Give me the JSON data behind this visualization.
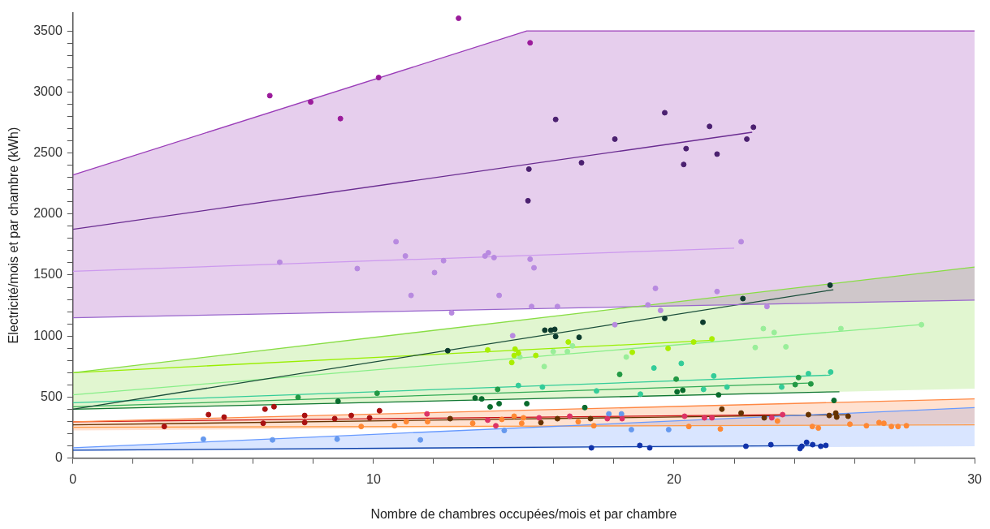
{
  "chart_data": {
    "type": "scatter",
    "xlabel": "Nombre de chambres occupées/mois et par chambre",
    "ylabel": "Electricité/mois et par chambre (kWh)",
    "xlim": [
      0,
      30
    ],
    "xticks": [
      0,
      {
        "value": 2,
        "label": null
      },
      {
        "value": 4,
        "label": null
      },
      {
        "value": 6,
        "label": null
      },
      {
        "value": 8,
        "label": null
      },
      10,
      {
        "value": 12,
        "label": null
      },
      {
        "value": 14,
        "label": null
      },
      {
        "value": 16,
        "label": null
      },
      {
        "value": 18,
        "label": null
      },
      20,
      {
        "value": 22,
        "label": null
      },
      {
        "value": 24,
        "label": null
      },
      {
        "value": 26,
        "label": null
      },
      {
        "value": 28,
        "label": null
      },
      30
    ],
    "ylim": [
      0,
      3650
    ],
    "yticks": [
      0,
      {
        "value": 100,
        "label": null
      },
      {
        "value": 200,
        "label": null
      },
      {
        "value": 300,
        "label": null
      },
      {
        "value": 400,
        "label": null
      },
      500,
      {
        "value": 600,
        "label": null
      },
      {
        "value": 700,
        "label": null
      },
      {
        "value": 800,
        "label": null
      },
      {
        "value": 900,
        "label": null
      },
      1000,
      {
        "value": 1100,
        "label": null
      },
      {
        "value": 1200,
        "label": null
      },
      {
        "value": 1300,
        "label": null
      },
      {
        "value": 1400,
        "label": null
      },
      1500,
      {
        "value": 1600,
        "label": null
      },
      {
        "value": 1700,
        "label": null
      },
      {
        "value": 1800,
        "label": null
      },
      {
        "value": 1900,
        "label": null
      },
      2000,
      {
        "value": 2100,
        "label": null
      },
      {
        "value": 2200,
        "label": null
      },
      {
        "value": 2300,
        "label": null
      },
      {
        "value": 2400,
        "label": null
      },
      2500,
      {
        "value": 2600,
        "label": null
      },
      {
        "value": 2700,
        "label": null
      },
      {
        "value": 2800,
        "label": null
      },
      {
        "value": 2900,
        "label": null
      },
      3000,
      {
        "value": 3100,
        "label": null
      },
      {
        "value": 3200,
        "label": null
      },
      {
        "value": 3300,
        "label": null
      },
      {
        "value": 3400,
        "label": null
      },
      3500
    ],
    "series": [
      {
        "type": "line",
        "color": "#9a3cb8",
        "x": [
          0,
          15.1,
          30
        ],
        "values": [
          2320,
          3500,
          3500
        ],
        "upper": [
          2320,
          3500,
          3500
        ],
        "lower": [
          1150,
          1225,
          1295
        ]
      },
      {
        "type": "line",
        "color": "#88dd44",
        "x": [
          0,
          30
        ],
        "values": [
          700,
          1566
        ],
        "upper": [
          700,
          1566
        ],
        "lower": [
          395,
          569
        ]
      },
      {
        "type": "line",
        "color": "#ff8844",
        "x": [
          0,
          30
        ],
        "values": [
          298,
          485
        ],
        "upper": [
          298,
          485
        ],
        "lower": [
          226,
          280
        ]
      },
      {
        "type": "line",
        "color": "#6699ff",
        "x": [
          0,
          30
        ],
        "values": [
          84,
          414
        ],
        "upper": [
          84,
          414
        ],
        "lower": [
          58,
          97
        ]
      },
      {
        "type": "line",
        "color": "#9966cc",
        "x": [
          0,
          30
        ],
        "values": [
          1150,
          1295
        ]
      },
      {
        "type": "line",
        "color": "#6a2c91",
        "x": [
          0,
          22.6
        ],
        "values": [
          1875,
          2670
        ]
      },
      {
        "type": "line",
        "color": "#cc99ee",
        "x": [
          0,
          22
        ],
        "values": [
          1530,
          1720
        ]
      },
      {
        "type": "line",
        "color": "#1a4d3a",
        "x": [
          0,
          25.3
        ],
        "values": [
          400,
          1380
        ]
      },
      {
        "type": "line",
        "color": "#99ee00",
        "x": [
          0,
          21.3
        ],
        "values": [
          700,
          965
        ]
      },
      {
        "type": "line",
        "color": "#88ee88",
        "x": [
          0,
          28.2
        ],
        "values": [
          518,
          1093
        ]
      },
      {
        "type": "line",
        "color": "#33cc99",
        "x": [
          0,
          25.2
        ],
        "values": [
          453,
          680
        ]
      },
      {
        "type": "line",
        "color": "#33aa55",
        "x": [
          0,
          24.5
        ],
        "values": [
          420,
          615
        ]
      },
      {
        "type": "line",
        "color": "#117733",
        "x": [
          0,
          25.5
        ],
        "values": [
          400,
          544
        ]
      },
      {
        "type": "line",
        "color": "#cc1111",
        "x": [
          0,
          23.6
        ],
        "values": [
          298,
          356
        ]
      },
      {
        "type": "line",
        "color": "#663300",
        "x": [
          0,
          25.8
        ],
        "values": [
          272,
          356
        ]
      },
      {
        "type": "line",
        "color": "#ff9944",
        "x": [
          0,
          30
        ],
        "values": [
          252,
          272
        ]
      },
      {
        "type": "line",
        "color": "#1144aa",
        "x": [
          0,
          25
        ],
        "values": [
          65,
          103
        ]
      },
      {
        "color": "#9b1b9b",
        "x": [
          6.55,
          7.91,
          8.9,
          10.17,
          12.83,
          15.21
        ],
        "values": [
          2970,
          2918,
          2782,
          3118,
          3604,
          3403
        ]
      },
      {
        "color": "#4b2070",
        "x": [
          15.17,
          15.14,
          16.06,
          18.03,
          16.92,
          19.69,
          20.4,
          20.32,
          21.18,
          21.43,
          22.42,
          22.64
        ],
        "values": [
          2368,
          2109,
          2775,
          2614,
          2420,
          2830,
          2536,
          2406,
          2718,
          2491,
          2614,
          2711
        ]
      },
      {
        "color": "#b88ae0",
        "x": [
          6.88,
          9.46,
          10.75,
          11.06,
          11.25,
          12.03,
          12.33,
          12.6,
          13.71,
          13.82,
          14.01,
          14.18,
          14.63,
          15.21,
          15.34,
          15.26,
          16.12,
          18.03,
          19.13,
          19.38,
          19.55,
          21.43,
          22.23,
          23.09
        ],
        "values": [
          1605,
          1553,
          1773,
          1656,
          1333,
          1520,
          1618,
          1190,
          1656,
          1682,
          1643,
          1333,
          1003,
          1630,
          1559,
          1242,
          1242,
          1093,
          1255,
          1391,
          1210,
          1365,
          1773,
          1242
        ]
      },
      {
        "color": "#0d3b2e",
        "x": [
          12.47,
          15.7,
          15.9,
          16.03,
          16.06,
          16.84,
          19.69,
          20.96,
          22.29,
          25.19
        ],
        "values": [
          880,
          1048,
          1048,
          1055,
          996,
          990,
          1145,
          1113,
          1307,
          1417
        ]
      },
      {
        "color": "#aaee00",
        "x": [
          13.8,
          14.71,
          14.68,
          14.82,
          14.6,
          15.4,
          16.48,
          18.61,
          19.8,
          20.65,
          21.26
        ],
        "values": [
          886,
          893,
          841,
          860,
          783,
          841,
          951,
          867,
          899,
          951,
          977
        ]
      },
      {
        "color": "#99ee99",
        "x": [
          14.87,
          15.98,
          15.68,
          16.45,
          16.62,
          18.41,
          22.97,
          23.33,
          22.7,
          23.72,
          25.55,
          28.23
        ],
        "values": [
          828,
          873,
          750,
          873,
          919,
          828,
          1061,
          1029,
          906,
          912,
          1061,
          1093
        ]
      },
      {
        "color": "#33cc99",
        "x": [
          14.82,
          15.62,
          17.42,
          18.88,
          19.33,
          20.24,
          21.32,
          20.98,
          21.76,
          23.58,
          24.47,
          25.21
        ],
        "values": [
          595,
          582,
          550,
          524,
          738,
          776,
          673,
          563,
          582,
          582,
          692,
          705
        ]
      },
      {
        "color": "#229944",
        "x": [
          7.49,
          10.12,
          14.13,
          18.19,
          20.07,
          24.14,
          24.03,
          24.55
        ],
        "values": [
          498,
          531,
          563,
          686,
          647,
          660,
          602,
          608
        ]
      },
      {
        "color": "#0a6b2e",
        "x": [
          8.82,
          13.38,
          13.6,
          13.88,
          14.18,
          15.1,
          17.03,
          20.1,
          20.29,
          21.48,
          25.32
        ],
        "values": [
          466,
          492,
          485,
          420,
          446,
          446,
          414,
          543,
          556,
          518,
          472
        ]
      },
      {
        "color": "#aa1111",
        "x": [
          3.04,
          4.51,
          5.03,
          6.39,
          6.69,
          6.33,
          7.71,
          7.71,
          8.71,
          9.26,
          9.87,
          10.2
        ],
        "values": [
          259,
          356,
          336,
          401,
          421,
          285,
          349,
          291,
          323,
          349,
          330,
          388
        ]
      },
      {
        "color": "#dd3366",
        "x": [
          11.78,
          13.8,
          14.07,
          15.51,
          16.53,
          17.78,
          18.27,
          20.35,
          21.01,
          21.26,
          23.25,
          23.61
        ],
        "values": [
          362,
          311,
          265,
          330,
          343,
          323,
          323,
          343,
          330,
          330,
          330,
          356
        ]
      },
      {
        "color": "#663300",
        "x": [
          12.55,
          15.57,
          16.12,
          17.22,
          21.59,
          22.23,
          23.0,
          24.47,
          25.16,
          25.38,
          25.41,
          25.79
        ],
        "values": [
          323,
          291,
          323,
          323,
          401,
          369,
          330,
          356,
          349,
          369,
          336,
          343
        ]
      },
      {
        "color": "#ff8833",
        "x": [
          9.59,
          10.7,
          11.09,
          11.8,
          13.3,
          14.27,
          14.68,
          14.99,
          14.93,
          16.81,
          17.33,
          20.49,
          21.54,
          23.44,
          24.6,
          24.8,
          25.85,
          26.4,
          26.82,
          26.98,
          27.23,
          27.45,
          27.73
        ],
        "values": [
          259,
          265,
          298,
          298,
          285,
          317,
          343,
          330,
          285,
          298,
          265,
          259,
          239,
          304,
          259,
          246,
          278,
          265,
          291,
          285,
          259,
          259,
          265
        ]
      },
      {
        "color": "#6699ee",
        "x": [
          4.34,
          6.64,
          8.79,
          11.56,
          14.35,
          17.83,
          18.25,
          18.58,
          19.82
        ],
        "values": [
          155,
          149,
          155,
          149,
          226,
          362,
          362,
          233,
          233
        ]
      },
      {
        "color": "#1133aa",
        "x": [
          17.25,
          18.86,
          19.19,
          22.39,
          23.22,
          24.19,
          24.25,
          24.41,
          24.61,
          24.88,
          25.05
        ],
        "values": [
          84,
          104,
          84,
          97,
          110,
          78,
          97,
          129,
          110,
          97,
          104
        ]
      }
    ]
  }
}
